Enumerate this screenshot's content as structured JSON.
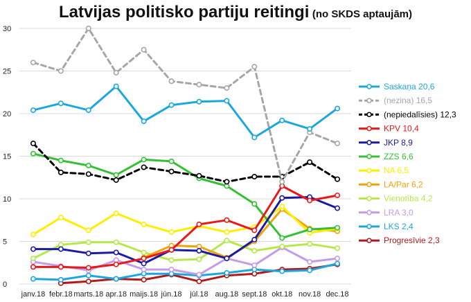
{
  "chart_data": {
    "type": "line",
    "title": "Latvijas politisko partiju reitingi",
    "subtitle": "(no SKDS aptaujām)",
    "x": [
      "janv.18",
      "febr.18",
      "marts.18",
      "apr.18",
      "maijs.18",
      "jūn.18",
      "jūl.18",
      "aug.18",
      "sept.18",
      "okt.18",
      "nov.18",
      "dec.18"
    ],
    "y_ticks": [
      "0",
      "5",
      "10",
      "15",
      "20",
      "25",
      "30"
    ],
    "ylim": [
      0,
      30
    ],
    "grid": true,
    "legend_position": "right",
    "series": [
      {
        "name": "Saskaņa",
        "label": "Saskaņa 20,6",
        "color": "#1aa7df",
        "dash": false,
        "marker": true,
        "values": [
          20.4,
          21.2,
          20.4,
          23.2,
          19.1,
          21.0,
          21.4,
          21.5,
          17.2,
          19.2,
          18.2,
          20.6
        ]
      },
      {
        "name": "(nezina)",
        "label": "(nezina) 16,5",
        "color": "#a6a6a6",
        "dash": true,
        "marker": true,
        "values": [
          26.0,
          25.0,
          30.0,
          24.8,
          27.5,
          23.8,
          23.4,
          23.0,
          25.5,
          12.0,
          17.8,
          16.5
        ]
      },
      {
        "name": "(nepiedalīsies)",
        "label": "(nepiedalīsies) 12,3",
        "color": "#000000",
        "dash": true,
        "marker": true,
        "values": [
          16.5,
          13.1,
          12.9,
          12.2,
          13.7,
          13.2,
          12.7,
          12.0,
          12.6,
          12.6,
          14.3,
          12.3
        ]
      },
      {
        "name": "KPV",
        "label": "KPV 10,4",
        "color": "#e81919",
        "dash": false,
        "marker": true,
        "values": [
          2.0,
          2.0,
          1.9,
          2.3,
          3.0,
          4.0,
          7.0,
          7.5,
          6.3,
          11.5,
          9.8,
          10.4
        ]
      },
      {
        "name": "JKP",
        "label": "JKP 8,9",
        "color": "#1a1aa6",
        "dash": false,
        "marker": true,
        "values": [
          4.1,
          4.1,
          3.6,
          3.7,
          2.4,
          4.0,
          3.9,
          3.0,
          5.2,
          10.1,
          10.2,
          8.9
        ]
      },
      {
        "name": "ZZS",
        "label": "ZZS 6,6",
        "color": "#33c033",
        "dash": false,
        "marker": true,
        "values": [
          15.3,
          14.5,
          13.9,
          12.8,
          14.6,
          14.4,
          12.4,
          11.5,
          9.4,
          5.4,
          6.4,
          6.6
        ]
      },
      {
        "name": "NA",
        "label": "NA 6,5",
        "color": "#ffee00",
        "dash": false,
        "marker": true,
        "values": [
          5.8,
          7.8,
          6.3,
          8.3,
          7.0,
          6.1,
          6.8,
          6.1,
          6.7,
          9.1,
          6.0,
          6.5
        ]
      },
      {
        "name": "LA/Par",
        "label": "LA/Par 6,2",
        "color": "#f2a20c",
        "dash": false,
        "marker": true,
        "values": [
          null,
          null,
          null,
          null,
          3.1,
          4.5,
          4.4,
          3.1,
          5.0,
          8.8,
          6.5,
          6.2
        ]
      },
      {
        "name": "Vienotība",
        "label": "Vienotība 4,2",
        "color": "#b6e84a",
        "dash": false,
        "marker": true,
        "values": [
          3.0,
          4.6,
          4.9,
          4.9,
          3.7,
          2.8,
          2.9,
          5.1,
          3.9,
          4.4,
          4.7,
          4.2
        ]
      },
      {
        "name": "LRA",
        "label": "LRA 3,0",
        "color": "#c39be8",
        "dash": false,
        "marker": true,
        "values": [
          2.6,
          2.1,
          1.6,
          2.8,
          1.7,
          1.7,
          1.1,
          3.0,
          2.2,
          4.3,
          2.6,
          3.0
        ]
      },
      {
        "name": "LKS",
        "label": "LKS 2,4",
        "color": "#1aa7df",
        "dash": false,
        "marker": true,
        "values": [
          0.6,
          0.5,
          1.0,
          0.6,
          1.2,
          1.2,
          1.0,
          1.3,
          1.7,
          1.5,
          1.6,
          2.4
        ]
      },
      {
        "name": "Progresīvie",
        "label": "Progresīvie 2,3",
        "color": "#b01a1a",
        "dash": false,
        "marker": true,
        "values": [
          null,
          0.1,
          0.3,
          0.6,
          0.5,
          1.1,
          0.3,
          1.0,
          1.2,
          1.7,
          1.8,
          2.3
        ]
      }
    ]
  }
}
